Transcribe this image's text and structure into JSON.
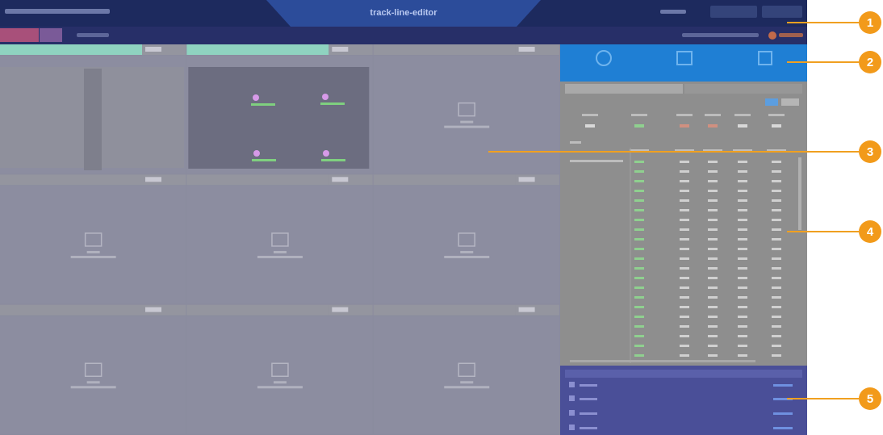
{
  "header": {
    "title": "track-line-editor"
  },
  "callouts": [
    "1",
    "2",
    "3",
    "4",
    "5"
  ]
}
